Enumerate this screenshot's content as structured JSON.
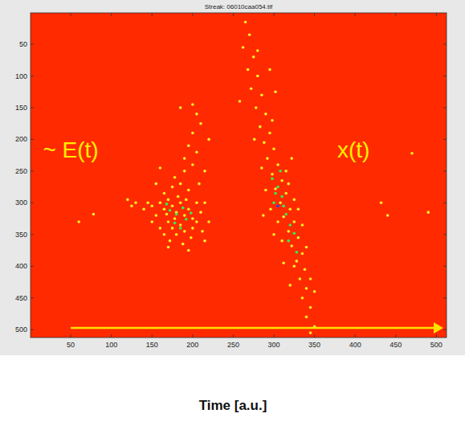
{
  "chart_data": {
    "type": "scatter",
    "title": "Streak: 06010caa054.tif",
    "x_label": "Time [a.u.]",
    "xlim": [
      0.5,
      512.5
    ],
    "ylim": [
      512.5,
      0.5
    ],
    "xticks": [
      50,
      100,
      150,
      200,
      250,
      300,
      350,
      400,
      450,
      500
    ],
    "yticks": [
      50,
      100,
      150,
      200,
      250,
      300,
      350,
      400,
      450,
      500
    ],
    "grid": false,
    "annotations": [
      {
        "text": "~ E(t)",
        "x": 50,
        "y": 216
      },
      {
        "text": "x(t)",
        "x": 398,
        "y": 216
      }
    ],
    "series": [
      {
        "color": "#ffee22",
        "marker": "dot",
        "x": [
          160,
          165,
          170,
          175,
          180,
          185,
          190,
          195,
          200,
          170,
          175,
          180,
          185,
          190,
          200,
          205,
          210,
          155,
          150,
          145,
          165,
          172,
          188,
          198,
          205,
          195,
          185,
          178,
          190,
          200,
          205,
          195,
          200,
          210,
          205,
          190,
          175,
          165,
          215,
          212,
          160,
          150,
          140,
          182,
          192,
          168,
          178,
          208,
          215,
          185,
          200,
          220,
          155,
          160,
          130,
          125,
          215,
          195,
          170,
          220,
          265,
          270,
          262,
          275,
          268,
          280,
          272,
          285,
          278,
          290,
          283,
          295,
          288,
          300,
          292,
          305,
          298,
          310,
          302,
          315,
          308,
          320,
          312,
          325,
          318,
          330,
          322,
          335,
          328,
          338,
          332,
          340,
          335,
          345,
          340,
          350,
          345,
          285,
          315,
          325,
          296,
          305,
          335,
          300,
          290,
          318,
          310,
          340,
          325,
          345,
          320,
          298,
          276,
          302,
          258,
          295,
          280,
          322,
          287,
          330,
          312,
          350,
          432,
          470,
          490,
          440,
          78,
          120,
          60
        ],
        "values": [
          300,
          310,
          295,
          305,
          315,
          300,
          320,
          310,
          325,
          330,
          340,
          350,
          335,
          345,
          340,
          330,
          315,
          320,
          305,
          300,
          350,
          360,
          365,
          355,
          300,
          280,
          270,
          260,
          250,
          240,
          220,
          210,
          190,
          175,
          160,
          230,
          275,
          285,
          300,
          345,
          340,
          330,
          310,
          290,
          295,
          318,
          325,
          270,
          250,
          150,
          145,
          200,
          270,
          245,
          300,
          305,
          360,
          375,
          370,
          330,
          15,
          35,
          55,
          70,
          90,
          100,
          120,
          130,
          150,
          160,
          180,
          190,
          205,
          215,
          230,
          240,
          255,
          265,
          278,
          285,
          300,
          310,
          322,
          330,
          345,
          355,
          368,
          380,
          392,
          405,
          420,
          435,
          450,
          465,
          480,
          495,
          505,
          245,
          250,
          295,
          310,
          330,
          335,
          350,
          280,
          270,
          360,
          370,
          400,
          420,
          430,
          170,
          200,
          125,
          140,
          90,
          60,
          230,
          320,
          310,
          395,
          440,
          300,
          222,
          315,
          320,
          318,
          295,
          330
        ]
      },
      {
        "color": "#33ee55",
        "marker": "dot",
        "x": [
          172,
          180,
          188,
          178,
          192,
          185,
          168,
          198,
          298,
          305,
          310,
          315,
          320,
          325,
          312,
          300,
          318,
          328,
          308,
          302
        ],
        "values": [
          312,
          318,
          308,
          332,
          326,
          340,
          302,
          316,
          262,
          275,
          290,
          318,
          335,
          348,
          305,
          300,
          360,
          378,
          250,
          285
        ]
      },
      {
        "color": "#2244ff",
        "marker": "dot",
        "x": [
          305
        ],
        "values": [
          305
        ]
      }
    ]
  }
}
